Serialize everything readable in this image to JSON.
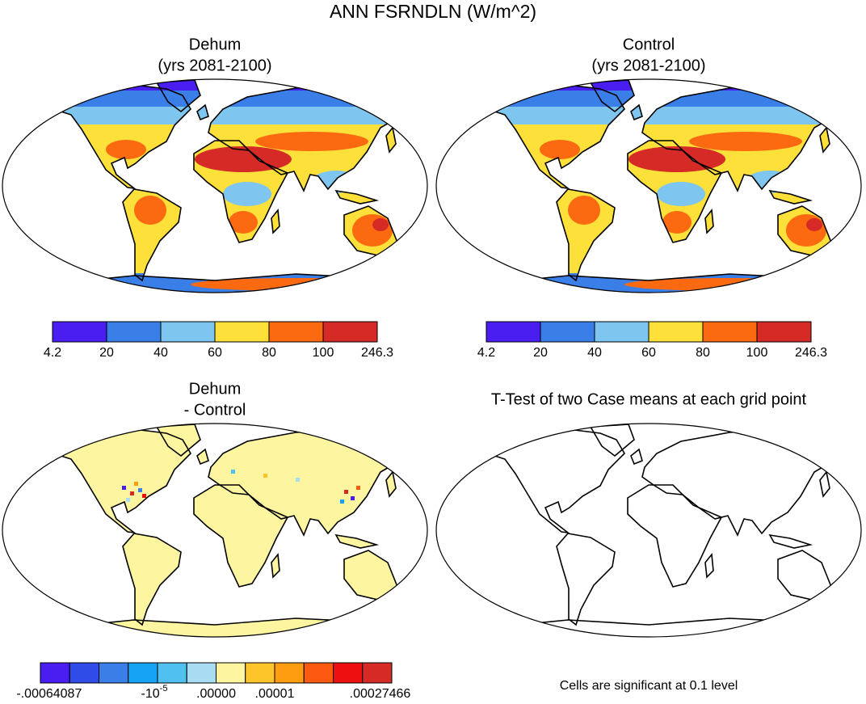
{
  "title": "ANN FSRNDLN (W/m^2)",
  "panels": [
    {
      "title": "Dehum",
      "subtitle": "(yrs 2081-2100)",
      "colorbar": {
        "colors": [
          "#4a1ef0",
          "#3a7fe8",
          "#7ec6ef",
          "#fde03a",
          "#fb6a10",
          "#d52a26"
        ],
        "labels": [
          "4.2",
          "20",
          "40",
          "60",
          "80",
          "100",
          "246.3"
        ]
      }
    },
    {
      "title": "Control",
      "subtitle": "(yrs 2081-2100)",
      "colorbar": {
        "colors": [
          "#4a1ef0",
          "#3a7fe8",
          "#7ec6ef",
          "#fde03a",
          "#fb6a10",
          "#d52a26"
        ],
        "labels": [
          "4.2",
          "20",
          "40",
          "60",
          "80",
          "100",
          "246.3"
        ]
      }
    },
    {
      "title": "Dehum",
      "subtitle": "- Control",
      "colorbar": {
        "colors": [
          "#4a1ef0",
          "#2f4be8",
          "#3a7fe8",
          "#17a3f5",
          "#4fc0f0",
          "#a8dcf2",
          "#fdf5a0",
          "#fdc52a",
          "#fd9d0f",
          "#fb5a10",
          "#ee1010",
          "#d52a26"
        ],
        "labels": [
          "-.00064087",
          {
            "base": "-10",
            "exponent": "-5"
          },
          ".00000",
          ".00001",
          ".00027466"
        ]
      }
    },
    {
      "title": "T-Test of two Case means at each grid point",
      "note": "Cells are significant at 0.1 level"
    }
  ]
}
